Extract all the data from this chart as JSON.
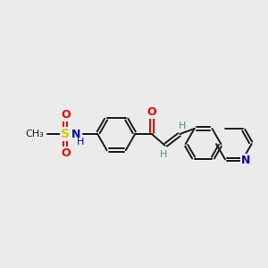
{
  "background_color": "#ebebeb",
  "bond_color": "#1a1a1a",
  "o_color": "#ff0000",
  "n_color": "#0000cc",
  "s_color": "#cccc00",
  "h_color": "#4a9090",
  "figsize": [
    3.0,
    3.0
  ],
  "dpi": 100,
  "xlim": [
    0,
    12
  ],
  "ylim": [
    0,
    12
  ]
}
